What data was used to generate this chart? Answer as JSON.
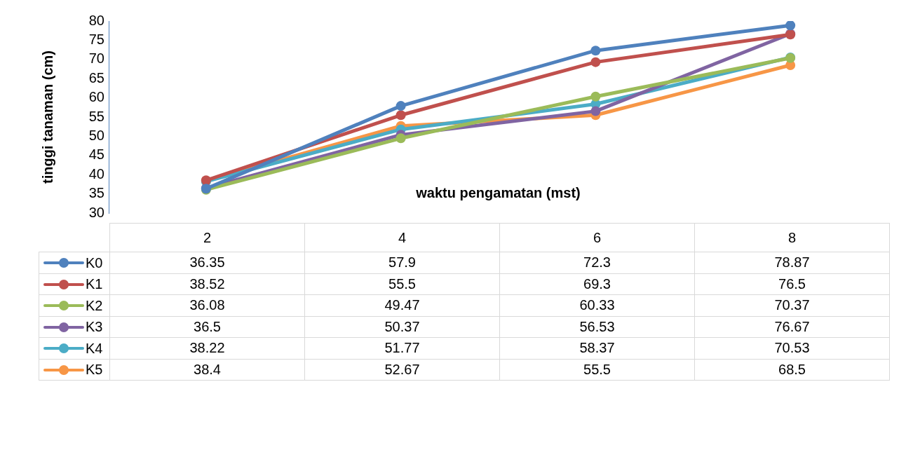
{
  "chart_data": {
    "type": "line",
    "xlabel": "waktu pengamatan (mst)",
    "ylabel": "tinggi tanaman (cm)",
    "categories": [
      "2",
      "4",
      "6",
      "8"
    ],
    "series": [
      {
        "name": "K0",
        "color": "#4f81bd",
        "values": [
          36.35,
          57.9,
          72.3,
          78.87
        ]
      },
      {
        "name": "K1",
        "color": "#c0504d",
        "values": [
          38.52,
          55.5,
          69.3,
          76.5
        ]
      },
      {
        "name": "K2",
        "color": "#9bbb59",
        "values": [
          36.08,
          49.47,
          60.33,
          70.37
        ]
      },
      {
        "name": "K3",
        "color": "#8064a2",
        "values": [
          36.5,
          50.37,
          56.53,
          76.67
        ]
      },
      {
        "name": "K4",
        "color": "#4bacc6",
        "values": [
          38.22,
          51.77,
          58.37,
          70.53
        ]
      },
      {
        "name": "K5",
        "color": "#f79646",
        "values": [
          38.4,
          52.67,
          55.5,
          68.5
        ]
      }
    ],
    "ylim": [
      30,
      80
    ],
    "yticks": [
      30,
      35,
      40,
      45,
      50,
      55,
      60,
      65,
      70,
      75,
      80
    ],
    "grid": false,
    "legend": "bottom",
    "marker": "circle",
    "line_style": "solid",
    "data_labels": true
  }
}
